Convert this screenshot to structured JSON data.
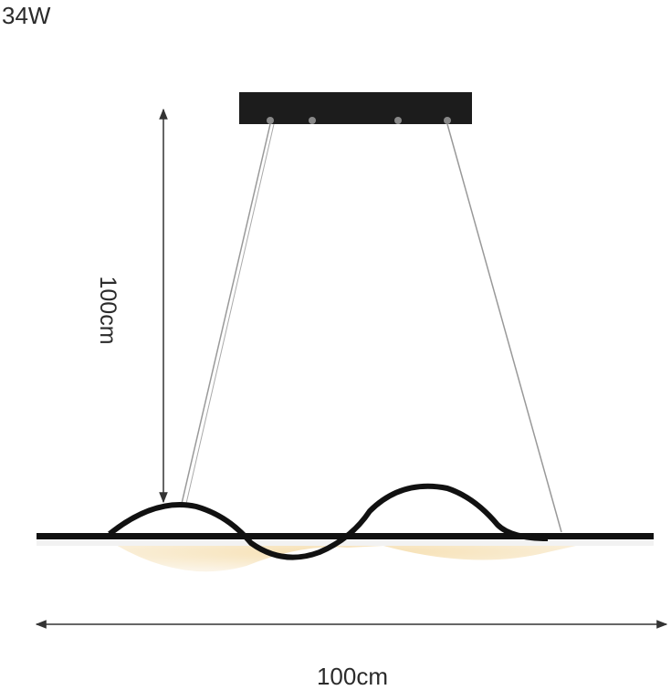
{
  "power_label": "34W",
  "height_label": "100cm",
  "width_label": "100cm"
}
